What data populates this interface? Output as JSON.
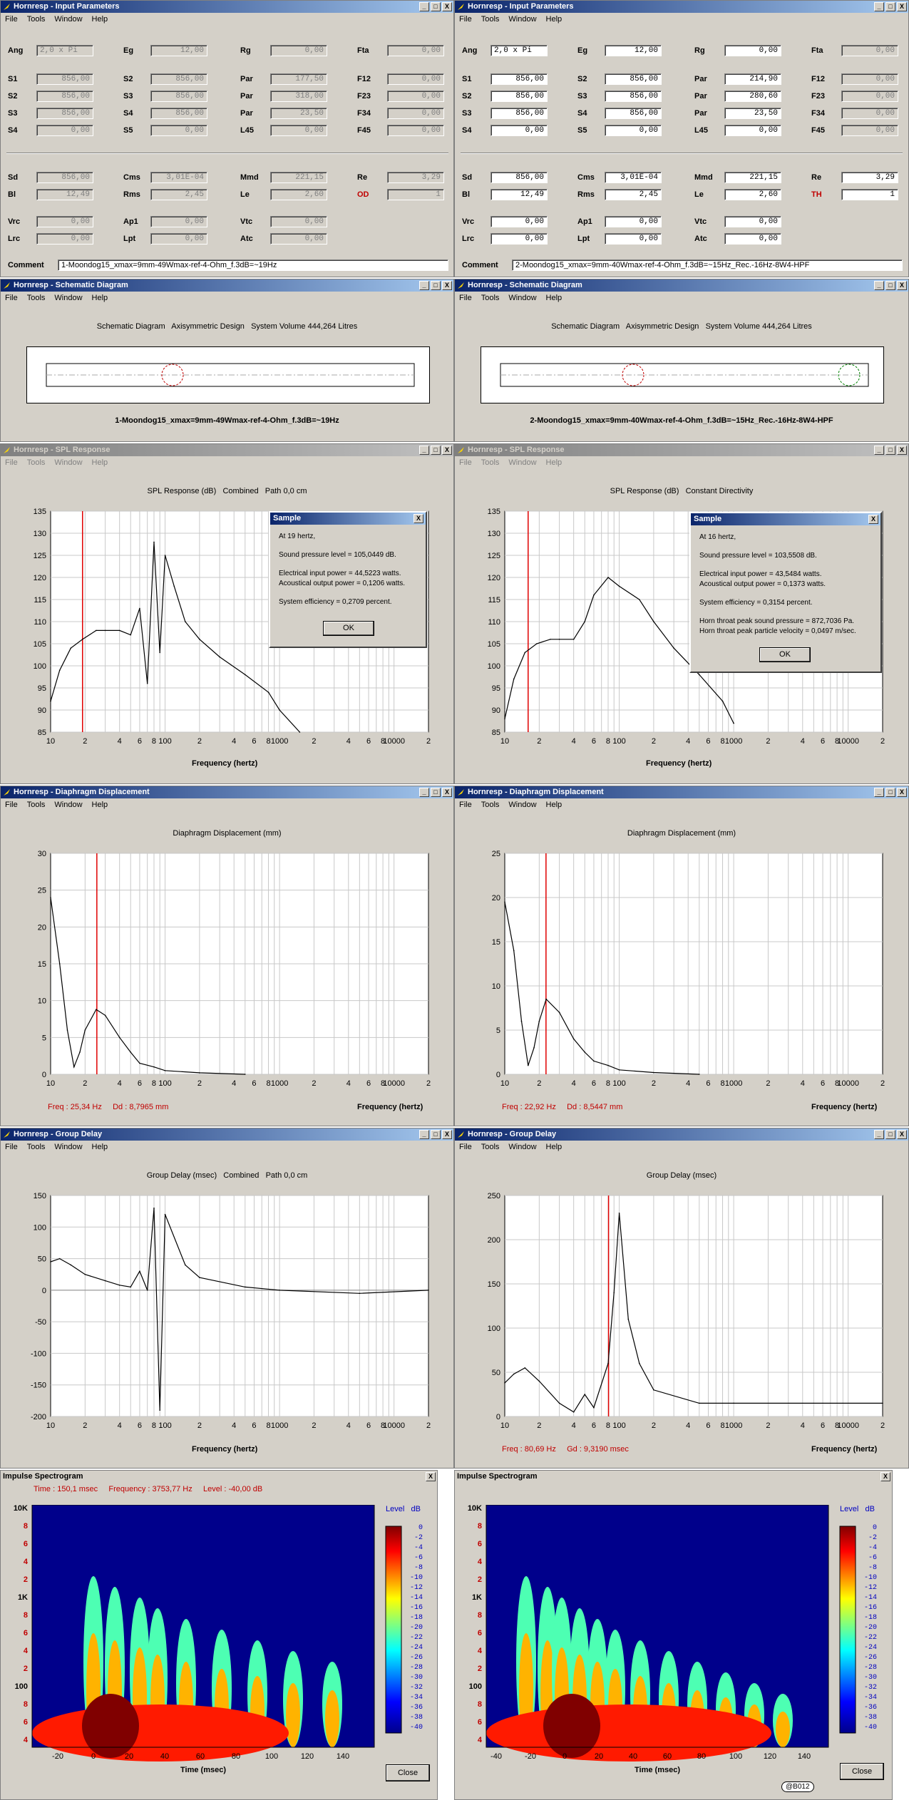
{
  "menu": [
    "File",
    "Tools",
    "Window",
    "Help"
  ],
  "window_buttons": [
    "_",
    "□",
    "X"
  ],
  "input_params": {
    "title": "Hornresp - Input Parameters",
    "left": {
      "rows": [
        [
          [
            "Ang",
            "2,0 x Pi"
          ],
          [
            "Eg",
            "12,00"
          ],
          [
            "Rg",
            "0,00"
          ],
          [
            "Fta",
            "0,00"
          ]
        ],
        [
          [
            "S1",
            "856,00"
          ],
          [
            "S2",
            "856,00"
          ],
          [
            "Par",
            "177,50"
          ],
          [
            "F12",
            "0,00"
          ]
        ],
        [
          [
            "S2",
            "856,00"
          ],
          [
            "S3",
            "856,00"
          ],
          [
            "Par",
            "318,00"
          ],
          [
            "F23",
            "0,00"
          ]
        ],
        [
          [
            "S3",
            "856,00"
          ],
          [
            "S4",
            "856,00"
          ],
          [
            "Par",
            "23,50"
          ],
          [
            "F34",
            "0,00"
          ]
        ],
        [
          [
            "S4",
            "0,00"
          ],
          [
            "S5",
            "0,00"
          ],
          [
            "L45",
            "0,00"
          ],
          [
            "F45",
            "0,00"
          ]
        ],
        [
          [
            "Sd",
            "856,00"
          ],
          [
            "Cms",
            "3,01E-04"
          ],
          [
            "Mmd",
            "221,15"
          ],
          [
            "Re",
            "3,29"
          ]
        ],
        [
          [
            "Bl",
            "12,49"
          ],
          [
            "Rms",
            "2,45"
          ],
          [
            "Le",
            "2,60"
          ],
          [
            "OD",
            "1"
          ]
        ],
        [
          [
            "Vrc",
            "0,00"
          ],
          [
            "Ap1",
            "0,00"
          ],
          [
            "Vtc",
            "0,00"
          ]
        ],
        [
          [
            "Lrc",
            "0,00"
          ],
          [
            "Lpt",
            "0,00"
          ],
          [
            "Atc",
            "0,00"
          ]
        ]
      ],
      "comment_label": "Comment",
      "comment": "1-Moondog15_xmax=9mm-49Wmax-ref-4-Ohm_f.3dB=~19Hz"
    },
    "right": {
      "rows": [
        [
          [
            "Ang",
            "2,0 x Pi"
          ],
          [
            "Eg",
            "12,00"
          ],
          [
            "Rg",
            "0,00"
          ],
          [
            "Fta",
            "0,00"
          ]
        ],
        [
          [
            "S1",
            "856,00"
          ],
          [
            "S2",
            "856,00"
          ],
          [
            "Par",
            "214,90"
          ],
          [
            "F12",
            "0,00"
          ]
        ],
        [
          [
            "S2",
            "856,00"
          ],
          [
            "S3",
            "856,00"
          ],
          [
            "Par",
            "280,60"
          ],
          [
            "F23",
            "0,00"
          ]
        ],
        [
          [
            "S3",
            "856,00"
          ],
          [
            "S4",
            "856,00"
          ],
          [
            "Par",
            "23,50"
          ],
          [
            "F34",
            "0,00"
          ]
        ],
        [
          [
            "S4",
            "0,00"
          ],
          [
            "S5",
            "0,00"
          ],
          [
            "L45",
            "0,00"
          ],
          [
            "F45",
            "0,00"
          ]
        ],
        [
          [
            "Sd",
            "856,00"
          ],
          [
            "Cms",
            "3,01E-04"
          ],
          [
            "Mmd",
            "221,15"
          ],
          [
            "Re",
            "3,29"
          ]
        ],
        [
          [
            "Bl",
            "12,49"
          ],
          [
            "Rms",
            "2,45"
          ],
          [
            "Le",
            "2,60"
          ],
          [
            "TH",
            "1"
          ]
        ],
        [
          [
            "Vrc",
            "0,00"
          ],
          [
            "Ap1",
            "0,00"
          ],
          [
            "Vtc",
            "0,00"
          ]
        ],
        [
          [
            "Lrc",
            "0,00"
          ],
          [
            "Lpt",
            "0,00"
          ],
          [
            "Atc",
            "0,00"
          ]
        ]
      ],
      "comment_label": "Comment",
      "comment": "2-Moondog15_xmax=9mm-40Wmax-ref-4-Ohm_f.3dB=~15Hz_Rec.-16Hz-8W4-HPF"
    }
  },
  "schematic": {
    "title": "Hornresp - Schematic Diagram",
    "heading": "Schematic Diagram   Axisymmetric Design   System Volume 444,264 Litres",
    "left_caption": "1-Moondog15_xmax=9mm-49Wmax-ref-4-Ohm_f.3dB=~19Hz",
    "right_caption": "2-Moondog15_xmax=9mm-40Wmax-ref-4-Ohm_f.3dB=~15Hz_Rec.-16Hz-8W4-HPF"
  },
  "spl": {
    "title": "Hornresp - SPL Response",
    "left_heading": "SPL Response (dB)   Combined   Path 0,0 cm",
    "right_heading": "SPL Response (dB)   Constant Directivity",
    "xlabel": "Frequency (hertz)",
    "left_dialog": {
      "title": "Sample",
      "lines": [
        "At 19 hertz,",
        "Sound pressure level = 105,0449 dB.",
        "Electrical input power = 44,5223 watts.",
        "Acoustical output power = 0,1206 watts.",
        "System efficiency = 0,2709 percent."
      ],
      "ok": "OK"
    },
    "right_dialog": {
      "title": "Sample",
      "lines": [
        "At 16 hertz,",
        "Sound pressure level = 103,5508 dB.",
        "Electrical input power = 43,5484 watts.",
        "Acoustical output power = 0,1373 watts.",
        "System efficiency = 0,3154 percent.",
        "Horn throat peak sound pressure = 872,7036 Pa.",
        "Horn throat peak particle velocity = 0,0497 m/sec."
      ],
      "ok": "OK"
    }
  },
  "displacement": {
    "title": "Hornresp - Diaphragm Displacement",
    "heading": "Diaphragm Displacement (mm)",
    "xlabel": "Frequency (hertz)",
    "left_readout": "Freq : 25,34 Hz     Dd : 8,7965 mm",
    "right_readout": "Freq : 22,92 Hz     Dd : 8,5447 mm"
  },
  "group_delay": {
    "title": "Hornresp - Group Delay",
    "left_heading": "Group Delay (msec)   Combined   Path 0,0 cm",
    "right_heading": "Group Delay (msec)",
    "xlabel": "Frequency (hertz)",
    "right_readout": "Freq : 80,69 Hz     Gd : 9,3190 msec"
  },
  "spectrogram": {
    "title": "Impulse Spectrogram",
    "left_header": "Time : 150,1 msec     Frequency : 3753,77 Hz     Level : -40,00 dB",
    "level_label": "Level   dB",
    "xlabel": "Time (msec)",
    "close": "Close",
    "signature": "@B012",
    "level_ticks": [
      "0",
      "-2",
      "-4",
      "-6",
      "-8",
      "-10",
      "-12",
      "-14",
      "-16",
      "-18",
      "-20",
      "-22",
      "-24",
      "-26",
      "-28",
      "-30",
      "-32",
      "-34",
      "-36",
      "-38",
      "-40"
    ],
    "y_ticks": [
      "10K",
      "8",
      "6",
      "4",
      "2",
      "1K",
      "8",
      "6",
      "4",
      "2",
      "100",
      "8",
      "6",
      "4"
    ],
    "left_x_ticks": [
      "-20",
      "0",
      "20",
      "40",
      "60",
      "80",
      "100",
      "120",
      "140"
    ],
    "right_x_ticks": [
      "-40",
      "-20",
      "0",
      "20",
      "40",
      "60",
      "80",
      "100",
      "120",
      "140"
    ]
  },
  "freq_ticks": [
    "10",
    "2",
    "4",
    "6",
    "8",
    "100",
    "2",
    "4",
    "6",
    "8",
    "1000",
    "2",
    "4",
    "6",
    "8",
    "10000",
    "2"
  ],
  "chart_data": [
    {
      "type": "line",
      "title": "SPL Response (dB)   Combined   Path 0,0 cm",
      "xlabel": "Frequency (hertz)",
      "ylabel": "",
      "ylim": [
        85,
        135
      ],
      "xscale": "log",
      "xlim": [
        10,
        20000
      ],
      "marker_hz": 19,
      "yticks": [
        85,
        90,
        95,
        100,
        105,
        110,
        115,
        120,
        125,
        130,
        135
      ],
      "series": [
        {
          "x": [
            10,
            12,
            15,
            19,
            25,
            30,
            40,
            50,
            60,
            70,
            80,
            90,
            100,
            120,
            150,
            200,
            300,
            500,
            800,
            1000,
            1500
          ],
          "values": [
            92,
            99,
            104,
            106,
            108,
            108,
            108,
            107,
            113,
            96,
            128,
            103,
            125,
            118,
            110,
            106,
            102,
            98,
            94,
            90,
            85
          ]
        }
      ]
    },
    {
      "type": "line",
      "title": "SPL Response (dB)   Constant Directivity",
      "xlabel": "Frequency (hertz)",
      "ylabel": "",
      "ylim": [
        85,
        135
      ],
      "xscale": "log",
      "xlim": [
        10,
        20000
      ],
      "marker_hz": 16,
      "yticks": [
        85,
        90,
        95,
        100,
        105,
        110,
        115,
        120,
        125,
        130,
        135
      ],
      "series": [
        {
          "x": [
            10,
            12,
            15,
            19,
            25,
            30,
            40,
            50,
            60,
            80,
            100,
            150,
            200,
            300,
            500,
            800,
            1000
          ],
          "values": [
            88,
            97,
            103,
            105,
            106,
            106,
            106,
            110,
            116,
            120,
            118,
            115,
            110,
            104,
            98,
            92,
            87
          ]
        }
      ]
    },
    {
      "type": "line",
      "title": "Diaphragm Displacement (mm)",
      "xlabel": "Frequency (hertz)",
      "ylabel": "",
      "ylim": [
        0,
        30
      ],
      "xscale": "log",
      "xlim": [
        10,
        20000
      ],
      "marker_hz": 25.34,
      "yticks": [
        0,
        5,
        10,
        15,
        20,
        25,
        30
      ],
      "series": [
        {
          "x": [
            10,
            12,
            14,
            16,
            18,
            20,
            25,
            30,
            40,
            50,
            60,
            80,
            100,
            200,
            500
          ],
          "values": [
            24,
            15,
            6,
            1,
            3,
            6,
            8.8,
            8,
            5,
            3,
            1.5,
            1,
            0.5,
            0.2,
            0
          ]
        }
      ]
    },
    {
      "type": "line",
      "title": "Diaphragm Displacement (mm)",
      "xlabel": "Frequency (hertz)",
      "ylabel": "",
      "ylim": [
        0,
        25
      ],
      "xscale": "log",
      "xlim": [
        10,
        20000
      ],
      "marker_hz": 22.92,
      "yticks": [
        0,
        5,
        10,
        15,
        20,
        25
      ],
      "series": [
        {
          "x": [
            10,
            12,
            14,
            16,
            18,
            20,
            23,
            30,
            40,
            50,
            60,
            80,
            100,
            200,
            500
          ],
          "values": [
            19.5,
            14,
            6,
            1,
            3,
            6,
            8.5,
            7,
            4,
            2.5,
            1.5,
            1,
            0.5,
            0.2,
            0
          ]
        }
      ]
    },
    {
      "type": "line",
      "title": "Group Delay (msec)   Combined   Path 0,0 cm",
      "xlabel": "Frequency (hertz)",
      "ylabel": "",
      "ylim": [
        -200,
        150
      ],
      "xscale": "log",
      "xlim": [
        10,
        20000
      ],
      "yticks": [
        -200,
        -150,
        -100,
        -50,
        0,
        50,
        100,
        150
      ],
      "series": [
        {
          "x": [
            10,
            12,
            15,
            20,
            30,
            40,
            50,
            60,
            70,
            80,
            90,
            100,
            150,
            200,
            500,
            1000,
            5000,
            20000
          ],
          "values": [
            45,
            50,
            40,
            25,
            15,
            8,
            5,
            30,
            0,
            130,
            -190,
            120,
            40,
            20,
            5,
            0,
            -5,
            0
          ]
        }
      ]
    },
    {
      "type": "line",
      "title": "Group Delay (msec)",
      "xlabel": "Frequency (hertz)",
      "ylabel": "",
      "ylim": [
        0,
        250
      ],
      "xscale": "log",
      "xlim": [
        10,
        20000
      ],
      "marker_hz": 80.69,
      "yticks": [
        0,
        50,
        100,
        150,
        200,
        250
      ],
      "series": [
        {
          "x": [
            10,
            12,
            15,
            20,
            30,
            40,
            50,
            60,
            80,
            90,
            100,
            120,
            150,
            200,
            500,
            1000,
            20000
          ],
          "values": [
            38,
            48,
            55,
            40,
            15,
            5,
            25,
            10,
            60,
            140,
            230,
            110,
            60,
            30,
            15,
            15,
            15
          ]
        }
      ]
    }
  ]
}
